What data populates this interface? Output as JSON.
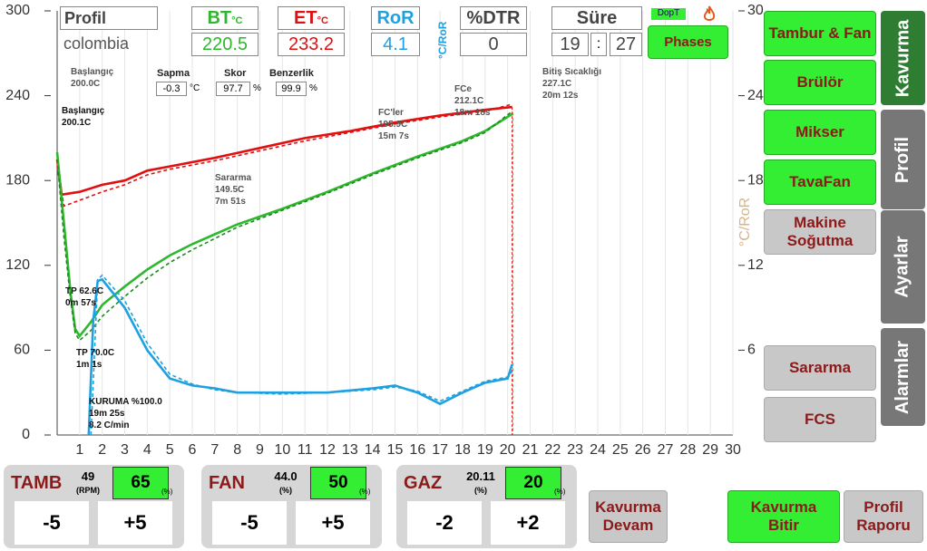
{
  "header": {
    "profile_label": "Profil",
    "profile_name": "colombia",
    "bt": {
      "label": "BT",
      "unit": "°C",
      "value": 220.5
    },
    "et": {
      "label": "ET",
      "unit": "°C",
      "value": 233.2
    },
    "ror": {
      "label": "RoR",
      "value": 4.1,
      "unit": "°C/RoR"
    },
    "dtr": {
      "label": "%DTR",
      "value": 0
    },
    "time": {
      "label": "Süre",
      "minutes": 19,
      "separator": ":",
      "seconds": 27
    },
    "dopt": "DopT",
    "phases": "Phases"
  },
  "stats": {
    "sapma": {
      "label": "Sapma",
      "value": -0.3,
      "unit": "°C"
    },
    "skor": {
      "label": "Skor",
      "value": 97.7,
      "unit": "%"
    },
    "benzerlik": {
      "label": "Benzerlik",
      "value": 99.9,
      "unit": "%"
    }
  },
  "annotations": [
    [
      "Başlangıç",
      "200.0C"
    ],
    [
      "Başlangıç",
      "200.1C"
    ],
    [
      "Sararma",
      "149.5C",
      "7m 51s"
    ],
    [
      "FC'ler",
      "195.9C",
      "15m 7s"
    ],
    [
      "FCe",
      "212.1C",
      "18m 18s"
    ],
    [
      "Bitiş Sıcaklığı",
      "227.1C",
      "20m 12s"
    ],
    [
      "TP  62.6C",
      "0m 57s"
    ],
    [
      "TP  70.0C",
      "1m 1s"
    ],
    [
      "KURUMA %100.0",
      "19m 25s",
      "8.2 C/min"
    ]
  ],
  "chart": {
    "type": "line",
    "xlim": [
      0,
      30
    ],
    "xticks": [
      1,
      2,
      3,
      4,
      5,
      6,
      7,
      8,
      9,
      10,
      11,
      12,
      13,
      14,
      15,
      16,
      17,
      18,
      19,
      20,
      21,
      22,
      23,
      24,
      25,
      26,
      27,
      28,
      29,
      30
    ],
    "ylim": [
      0,
      300
    ],
    "yticks": [
      0,
      60,
      120,
      180,
      240,
      300
    ],
    "y2lim": [
      0,
      30
    ],
    "y2ticks": [
      6,
      12,
      18,
      24,
      30
    ],
    "y2label": "°C/RoR",
    "grid": true,
    "end_x": 20.2,
    "series": [
      {
        "name": "ET",
        "color": "#e01010",
        "x": [
          0,
          0.2,
          1,
          2,
          3,
          4,
          5,
          7,
          9,
          11,
          13,
          15,
          17,
          19,
          20.2
        ],
        "values": [
          195,
          170,
          172,
          177,
          180,
          187,
          190,
          196,
          203,
          210,
          215,
          221,
          226,
          230,
          232
        ]
      },
      {
        "color": "#e01010",
        "dashed": true,
        "x": [
          0,
          0.3,
          1,
          2,
          3,
          4,
          5,
          7,
          9,
          11,
          13,
          15,
          17,
          19,
          20.2
        ],
        "values": [
          190,
          162,
          166,
          172,
          177,
          184,
          188,
          194,
          201,
          208,
          214,
          220,
          225,
          229,
          234
        ]
      },
      {
        "name": "BT",
        "color": "#2db82d",
        "x": [
          0,
          0.3,
          0.6,
          0.8,
          1,
          1.5,
          2,
          3,
          4,
          5,
          6,
          7,
          8,
          10,
          12,
          14,
          16,
          18,
          19,
          20.2
        ],
        "values": [
          200,
          150,
          100,
          75,
          70,
          80,
          92,
          105,
          117,
          127,
          135,
          142,
          149,
          160,
          172,
          185,
          197,
          208,
          215,
          227
        ]
      },
      {
        "color": "#1e8a1e",
        "dashed": true,
        "x": [
          0,
          0.3,
          0.6,
          0.8,
          1,
          1.5,
          2,
          3,
          4,
          5,
          6,
          7,
          8,
          10,
          12,
          14,
          16,
          18,
          19,
          20.2
        ],
        "values": [
          195,
          140,
          95,
          72,
          67,
          74,
          84,
          98,
          111,
          122,
          131,
          139,
          147,
          159,
          171,
          184,
          196,
          207,
          214,
          229
        ]
      },
      {
        "name": "RoR",
        "color": "#1fa0e0",
        "axis": "y2",
        "x": [
          1.4,
          1.6,
          1.8,
          2,
          3,
          4,
          5,
          6,
          7,
          8,
          10,
          12,
          14,
          15,
          16,
          17,
          18,
          19,
          20,
          20.2
        ],
        "values": [
          0,
          8,
          10.9,
          11,
          9,
          6,
          4,
          3.5,
          3.3,
          3,
          3,
          3,
          3.3,
          3.5,
          3,
          2.2,
          3,
          3.7,
          4,
          5
        ]
      },
      {
        "color": "#1fa0e0",
        "dashed": true,
        "axis": "y2",
        "x": [
          1.5,
          1.8,
          2,
          3,
          4,
          5,
          6,
          7,
          8,
          10,
          12,
          14,
          15,
          16,
          17,
          18,
          19,
          20,
          20.2
        ],
        "values": [
          0,
          11,
          11.3,
          9.5,
          6.5,
          4.3,
          3.6,
          3.2,
          3,
          2.9,
          3,
          3.2,
          3.4,
          3.1,
          2.4,
          3.1,
          3.8,
          4.1,
          4.5
        ]
      }
    ]
  },
  "sidebar": {
    "buttons": [
      "Tambur & Fan",
      "Brülör",
      "Mikser",
      "TavaFan",
      "Makine Soğutma",
      "Sararma",
      "FCS"
    ],
    "tabs": [
      "Kavurma",
      "Profil",
      "Ayarlar",
      "Alarmlar"
    ]
  },
  "controls": [
    {
      "label": "TAMB",
      "value": 49,
      "unit": "(RPM)",
      "set": 65,
      "set_unit": "(%)",
      "minus": -5,
      "plus": "+5"
    },
    {
      "label": "FAN",
      "value": "44.0",
      "unit": "(%)",
      "set": 50,
      "set_unit": "(%)",
      "minus": -5,
      "plus": "+5"
    },
    {
      "label": "GAZ",
      "value": 20.11,
      "unit": "(%)",
      "set": 20,
      "set_unit": "(%)",
      "minus": -2,
      "plus": "+2"
    }
  ],
  "actions": [
    "Kavurma Devam",
    "Kavurma Bitir",
    "Profil Raporu"
  ]
}
